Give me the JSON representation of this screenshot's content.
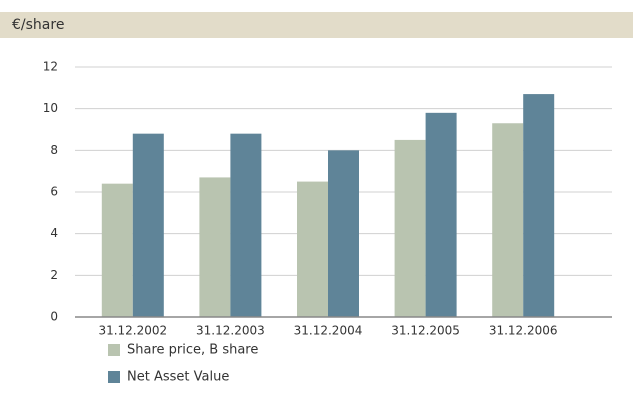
{
  "chart_data": {
    "type": "bar",
    "title": "€/share",
    "categories": [
      "31.12.2002",
      "31.12.2003",
      "31.12.2004",
      "31.12.2005",
      "31.12.2006"
    ],
    "series": [
      {
        "name": "Share price, B share",
        "color": "#b9c4b0",
        "values": [
          6.4,
          6.7,
          6.5,
          8.5,
          9.3
        ]
      },
      {
        "name": "Net Asset Value",
        "color": "#5f8498",
        "values": [
          8.8,
          8.8,
          8.0,
          9.8,
          10.7
        ]
      }
    ],
    "ylim": [
      0,
      12
    ],
    "yticks": [
      0,
      2,
      4,
      6,
      8,
      10,
      12
    ],
    "grid": true
  }
}
